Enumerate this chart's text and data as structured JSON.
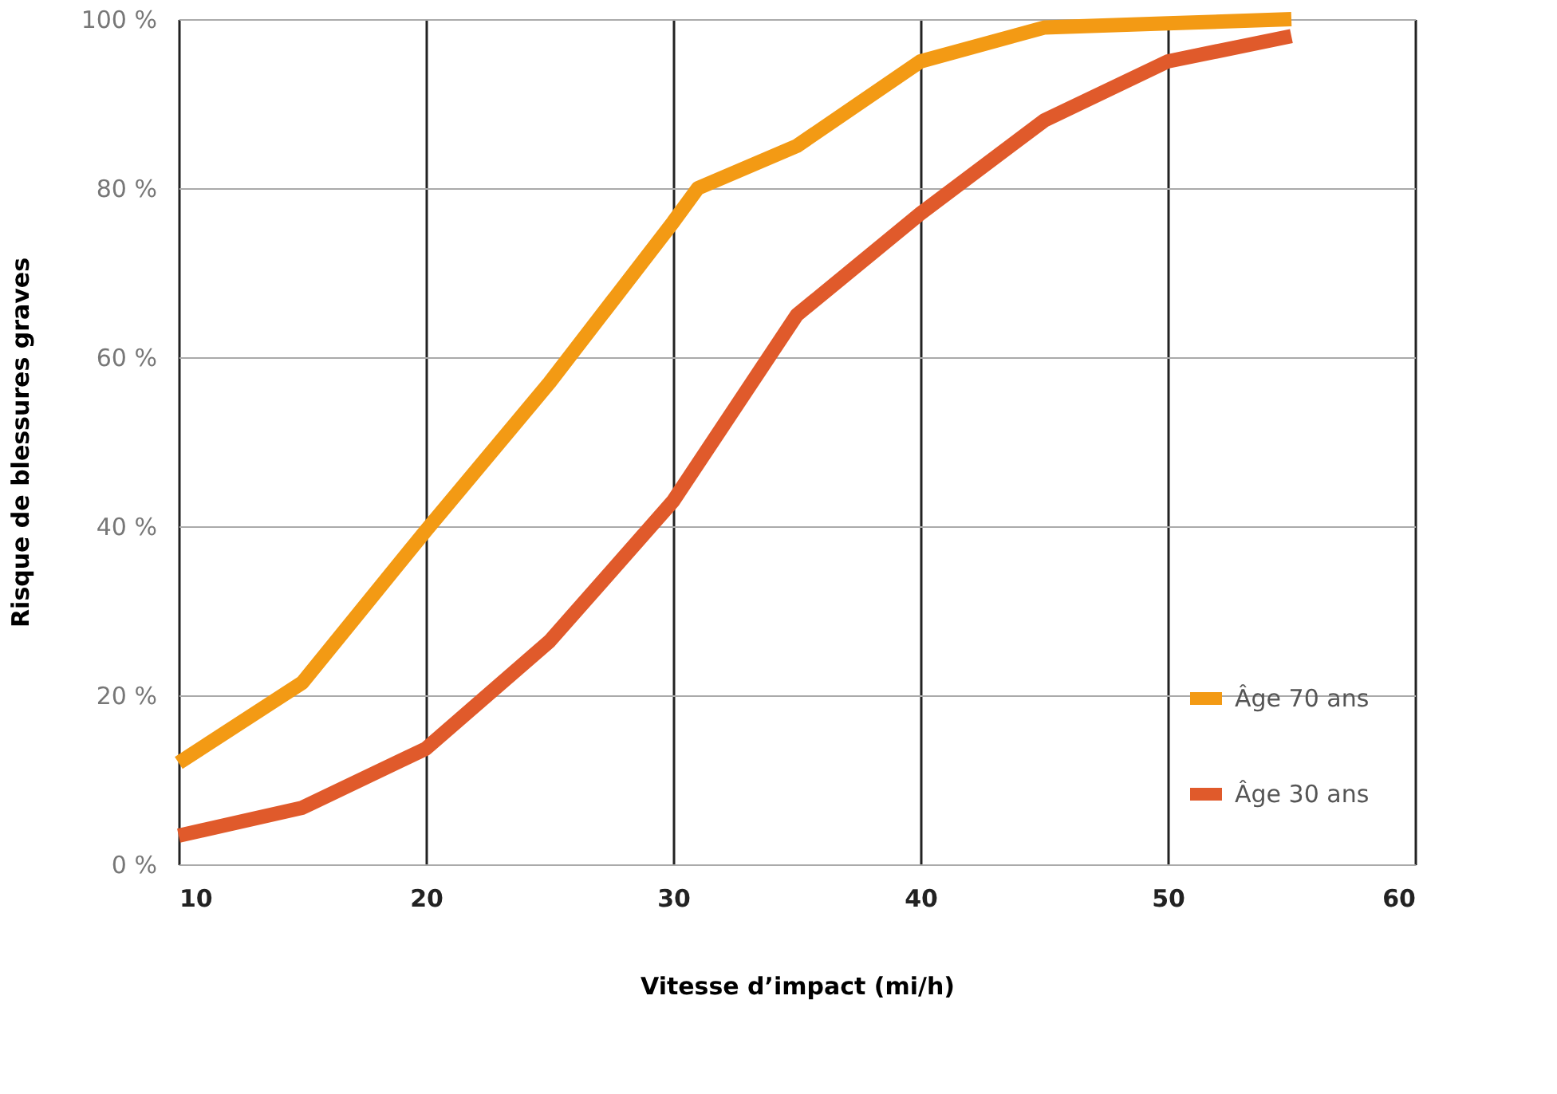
{
  "chart_data": {
    "type": "line",
    "xlabel": "Vitesse d’impact (mi/h)",
    "ylabel": "Risque de blessures graves",
    "xlim": [
      10,
      60
    ],
    "xticks": [
      10,
      20,
      30,
      40,
      50,
      60
    ],
    "ylim": [
      0,
      100
    ],
    "yticks": [
      {
        "value": 0,
        "label": "0 %"
      },
      {
        "value": 20,
        "label": "20 %"
      },
      {
        "value": 40,
        "label": "40 %"
      },
      {
        "value": 60,
        "label": "60 %"
      },
      {
        "value": 80,
        "label": "80 %"
      },
      {
        "value": 100,
        "label": "100 %"
      }
    ],
    "grid": true,
    "legend": "bottom right",
    "line_style": "solid",
    "series": [
      {
        "name": "Âge 70 ans",
        "color": "#f39a14",
        "x": [
          10,
          15,
          20,
          25,
          30,
          31,
          35,
          40,
          45,
          50,
          55
        ],
        "values": [
          12,
          21.5,
          39.5,
          57,
          76,
          80,
          85,
          95,
          99,
          99.5,
          100
        ]
      },
      {
        "name": "Âge 30 ans",
        "color": "#e05a2b",
        "x": [
          10,
          15,
          20,
          25,
          30,
          35,
          40,
          45,
          50,
          55
        ],
        "values": [
          3.4,
          6.7,
          13.7,
          26.4,
          43,
          65,
          77,
          88,
          95,
          98
        ]
      }
    ]
  }
}
